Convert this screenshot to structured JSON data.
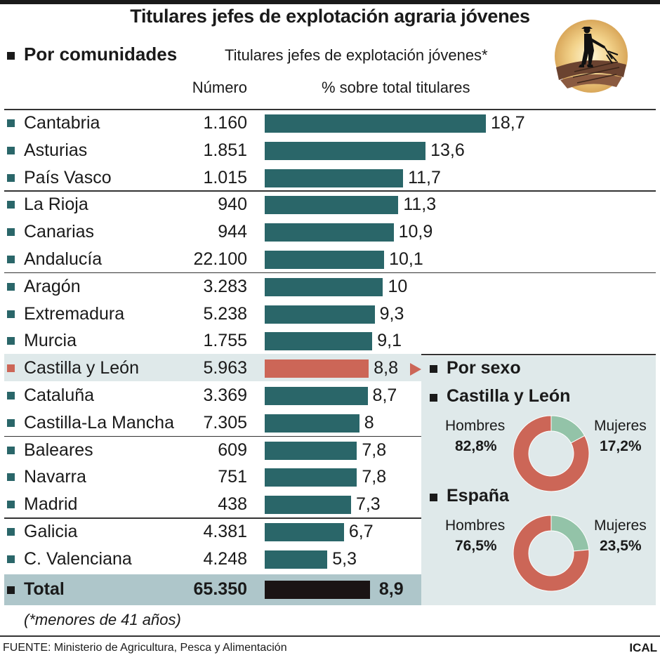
{
  "title": "Titulares jefes de explotación agraria jóvenes",
  "section_title": "Por comunidades",
  "chart_heading": "Titulares jefes de explotación jóvenes*",
  "column_number": "Número",
  "column_percent": "% sobre total titulares",
  "colors": {
    "bar": "#2a6669",
    "highlight_bar": "#cc6657",
    "total_bar": "#1a1414",
    "square": "#2a6669",
    "highlight_square": "#cc6657",
    "panel_bg": "#dfe9ea",
    "total_bg": "#aec6ca",
    "donut_men": "#cc6657",
    "donut_women": "#93c3a8"
  },
  "chart_data": {
    "type": "bar",
    "orientation": "horizontal",
    "categories": [
      "Cantabria",
      "Asturias",
      "País Vasco",
      "La Rioja",
      "Canarias",
      "Andalucía",
      "Aragón",
      "Extremadura",
      "Murcia",
      "Castilla y León",
      "Cataluña",
      "Castilla-La Mancha",
      "Baleares",
      "Navarra",
      "Madrid",
      "Galicia",
      "C. Valenciana"
    ],
    "numbers": [
      "1.160",
      "1.851",
      "1.015",
      "940",
      "944",
      "22.100",
      "3.283",
      "5.238",
      "1.755",
      "5.963",
      "3.369",
      "7.305",
      "609",
      "751",
      "438",
      "4.381",
      "4.248"
    ],
    "value_labels": [
      "18,7",
      "13,6",
      "11,7",
      "11,3",
      "10,9",
      "10,1",
      "10",
      "9,3",
      "9,1",
      "8,8",
      "8,7",
      "8",
      "7,8",
      "7,8",
      "7,3",
      "6,7",
      "5,3"
    ],
    "values": [
      18.7,
      13.6,
      11.7,
      11.3,
      10.9,
      10.1,
      10,
      9.3,
      9.1,
      8.8,
      8.7,
      8,
      7.8,
      7.8,
      7.3,
      6.7,
      5.3
    ],
    "highlight": "Castilla y León",
    "total": {
      "label": "Total",
      "number": "65.350",
      "value": 8.9,
      "value_label": "8,9"
    },
    "xlim": [
      0,
      18.7
    ]
  },
  "sex": {
    "title": "Por sexo",
    "charts": [
      {
        "region": "Castilla y León",
        "men_label": "Hombres",
        "men_pct": "82,8%",
        "men_value": 82.8,
        "women_label": "Mujeres",
        "women_pct": "17,2%",
        "women_value": 17.2
      },
      {
        "region": "España",
        "men_label": "Hombres",
        "men_pct": "76,5%",
        "men_value": 76.5,
        "women_label": "Mujeres",
        "women_pct": "23,5%",
        "women_value": 23.5
      }
    ]
  },
  "footnote": "(*menores de 41 años)",
  "source": "FUENTE:  Ministerio de Agricultura, Pesca y Alimentación",
  "credit": "ICAL"
}
